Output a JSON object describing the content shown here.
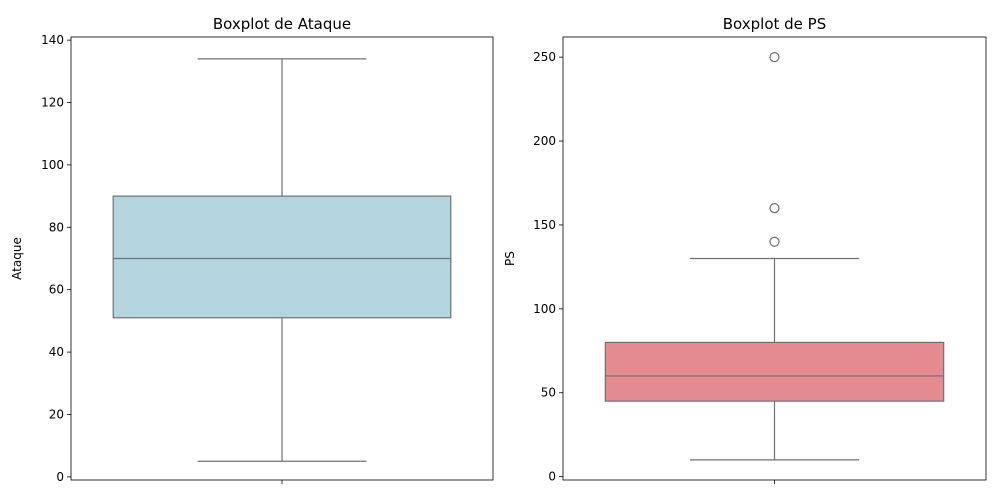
{
  "chart_data": [
    {
      "type": "boxplot",
      "title": "Boxplot de Ataque",
      "ylabel": "Ataque",
      "xlabel": "",
      "ylim": [
        -1,
        141
      ],
      "yticks": [
        0,
        20,
        40,
        60,
        80,
        100,
        120,
        140
      ],
      "grid": false,
      "color": "#b3d5e0",
      "line_color": "#707070",
      "stats": {
        "whisker_low": 5,
        "q1": 51,
        "median": 70,
        "q3": 90,
        "whisker_high": 134
      },
      "outliers": []
    },
    {
      "type": "boxplot",
      "title": "Boxplot de PS",
      "ylabel": "PS",
      "xlabel": "",
      "ylim": [
        -2,
        262
      ],
      "yticks": [
        0,
        50,
        100,
        150,
        200,
        250
      ],
      "grid": false,
      "color": "#e38b8e",
      "line_color": "#707070",
      "stats": {
        "whisker_low": 10,
        "q1": 45,
        "median": 60,
        "q3": 80,
        "whisker_high": 130
      },
      "outliers": [
        140,
        160,
        250
      ]
    }
  ]
}
